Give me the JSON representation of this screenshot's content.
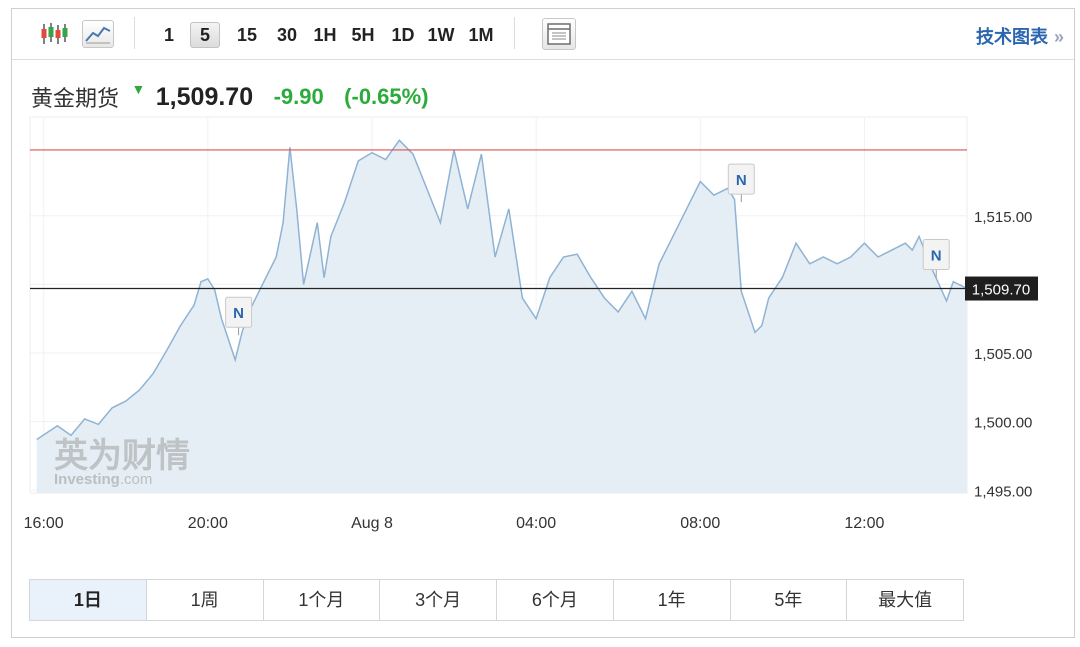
{
  "toolbar": {
    "intervals": [
      "1",
      "5",
      "15",
      "30",
      "1H",
      "5H",
      "1D",
      "1W",
      "1M"
    ],
    "active_interval": "5",
    "tech_chart_label": "技术图表",
    "tech_chart_arrows": "»",
    "icons": [
      "candlestick-icon",
      "line-chart-icon",
      "table-icon"
    ]
  },
  "quote": {
    "name": "黄金期货",
    "direction_icon": "down-arrow-icon",
    "price": "1,509.70",
    "change": "-9.90",
    "change_pct": "(-0.65%)"
  },
  "colors": {
    "line": "#8fb3d4",
    "area": "#e6eef5",
    "resistance_line": "#d9534f",
    "current_line": "#222222",
    "down": "#2bab3a",
    "link": "#2a66b0"
  },
  "watermark": {
    "brand_cn": "英为财情",
    "brand_en": "Investing",
    "brand_suffix": ".com"
  },
  "chart_data": {
    "type": "area",
    "title": "",
    "xlabel": "",
    "ylabel": "",
    "x_ticks": [
      "16:00",
      "20:00",
      "Aug 8",
      "04:00",
      "08:00",
      "12:00"
    ],
    "y_ticks": [
      "1,495.00",
      "1,500.00",
      "1,505.00",
      "1,510.00",
      "1,515.00"
    ],
    "ylim": [
      1494.8,
      1522.2
    ],
    "grid": true,
    "current_price": 1509.7,
    "current_price_label": "1,509.70",
    "upper_line": 1519.8,
    "news_markers": [
      {
        "label": "N",
        "time": "20:45",
        "price": 1506.3
      },
      {
        "label": "N",
        "time": "09:00",
        "price": 1516.0
      },
      {
        "label": "N",
        "time": "13:45",
        "price": 1510.5
      }
    ],
    "series": [
      {
        "x": [
          "15:50",
          "16:20",
          "16:40",
          "17:00",
          "17:20",
          "17:40",
          "18:00",
          "18:20",
          "18:40",
          "19:00",
          "19:20",
          "19:40",
          "19:50",
          "20:00",
          "20:10",
          "20:20",
          "20:40",
          "20:50",
          "21:00",
          "21:20",
          "21:40",
          "21:50",
          "22:00",
          "22:10",
          "22:20",
          "22:40",
          "22:50",
          "23:00",
          "23:20",
          "23:40",
          "00:00",
          "00:20",
          "00:40",
          "01:00",
          "01:20",
          "01:40",
          "02:00",
          "02:20",
          "02:40",
          "03:00",
          "03:20",
          "03:40",
          "04:00",
          "04:20",
          "04:40",
          "05:00",
          "05:20",
          "05:40",
          "06:00",
          "06:20",
          "06:40",
          "07:00",
          "07:20",
          "07:40",
          "08:00",
          "08:20",
          "08:40",
          "08:50",
          "09:00",
          "09:20",
          "09:30",
          "09:40",
          "10:00",
          "10:20",
          "10:40",
          "11:00",
          "11:20",
          "11:40",
          "12:00",
          "12:20",
          "12:40",
          "13:00",
          "13:10",
          "13:20",
          "13:40",
          "14:00",
          "14:10",
          "14:30"
        ],
        "y": [
          1498.7,
          1499.7,
          1499.0,
          1500.2,
          1499.8,
          1501.0,
          1501.5,
          1502.3,
          1503.5,
          1505.2,
          1507.0,
          1508.5,
          1510.2,
          1510.4,
          1509.6,
          1507.5,
          1504.5,
          1506.5,
          1508.0,
          1510.0,
          1512.0,
          1514.5,
          1520.0,
          1515.5,
          1510.0,
          1514.5,
          1510.5,
          1513.5,
          1516.0,
          1519.0,
          1519.6,
          1519.1,
          1520.5,
          1519.5,
          1517.0,
          1514.5,
          1519.8,
          1515.5,
          1519.5,
          1512.0,
          1515.5,
          1509.0,
          1507.5,
          1510.5,
          1512.0,
          1512.2,
          1510.5,
          1509.0,
          1508.0,
          1509.5,
          1507.5,
          1511.5,
          1513.5,
          1515.5,
          1517.5,
          1516.5,
          1517.0,
          1516.2,
          1509.5,
          1506.5,
          1507.0,
          1509.0,
          1510.5,
          1513.0,
          1511.5,
          1512.0,
          1511.5,
          1512.0,
          1513.0,
          1512.0,
          1512.5,
          1513.0,
          1512.5,
          1513.5,
          1511.0,
          1508.8,
          1510.2,
          1509.7
        ]
      }
    ]
  },
  "ranges": [
    "1日",
    "1周",
    "1个月",
    "3个月",
    "6个月",
    "1年",
    "5年",
    "最大值"
  ],
  "active_range": "1日"
}
